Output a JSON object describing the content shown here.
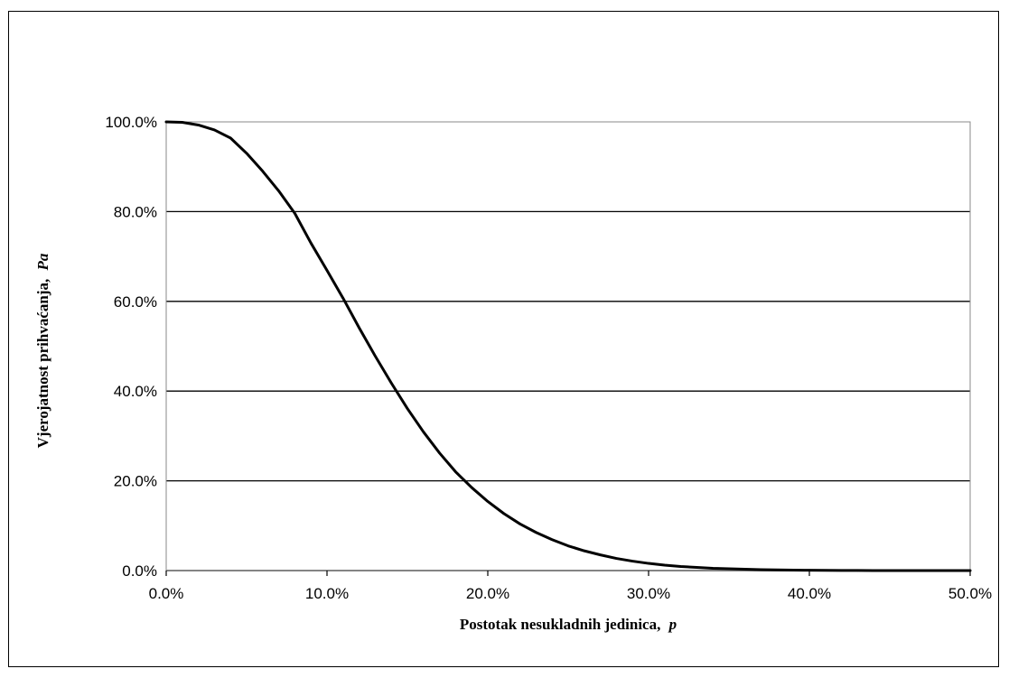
{
  "chart_data": {
    "type": "line",
    "title": "",
    "xlabel": "Postotak nesukladnih jedinica,",
    "xlabel_var": "p",
    "ylabel": "Vjerojatnost prihvaćanja,",
    "ylabel_var": "Pa",
    "xlim": [
      0,
      50
    ],
    "ylim": [
      0,
      100
    ],
    "x_ticks": [
      0,
      10,
      20,
      30,
      40,
      50
    ],
    "y_ticks": [
      0,
      20,
      40,
      60,
      80,
      100
    ],
    "x_tick_labels": [
      "0.0%",
      "10.0%",
      "20.0%",
      "30.0%",
      "40.0%",
      "50.0%"
    ],
    "y_tick_labels": [
      "0.0%",
      "20.0%",
      "40.0%",
      "60.0%",
      "80.0%",
      "100.0%"
    ],
    "grid": "horizontal",
    "legend": "none",
    "series": [
      {
        "x": [
          0,
          1,
          2,
          3,
          4,
          5,
          6,
          7,
          8,
          9,
          10,
          11,
          12,
          13,
          14,
          15,
          16,
          17,
          18,
          19,
          20,
          21,
          22,
          23,
          24,
          25,
          26,
          27,
          28,
          29,
          30,
          31,
          32,
          33,
          34,
          35,
          36,
          37,
          38,
          39,
          40,
          41,
          42,
          43,
          44,
          45,
          46,
          47,
          48,
          49,
          50
        ],
        "values": [
          100,
          99.9,
          99.3,
          98.2,
          96.4,
          93.0,
          89.0,
          84.6,
          79.6,
          73.0,
          66.9,
          60.7,
          54.1,
          47.8,
          41.8,
          36.1,
          30.9,
          26.2,
          22.0,
          18.5,
          15.4,
          12.7,
          10.4,
          8.5,
          6.9,
          5.5,
          4.4,
          3.5,
          2.7,
          2.1,
          1.6,
          1.2,
          0.9,
          0.7,
          0.5,
          0.4,
          0.3,
          0.2,
          0.15,
          0.1,
          0.07,
          0.05,
          0.03,
          0.02,
          0.01,
          0.01,
          0.0,
          0.0,
          0.0,
          0.0,
          0.0
        ]
      }
    ],
    "colors": {
      "line": "#000000",
      "grid": "#000000",
      "plot_border": "#888888",
      "frame": "#000000",
      "background": "#ffffff"
    }
  }
}
